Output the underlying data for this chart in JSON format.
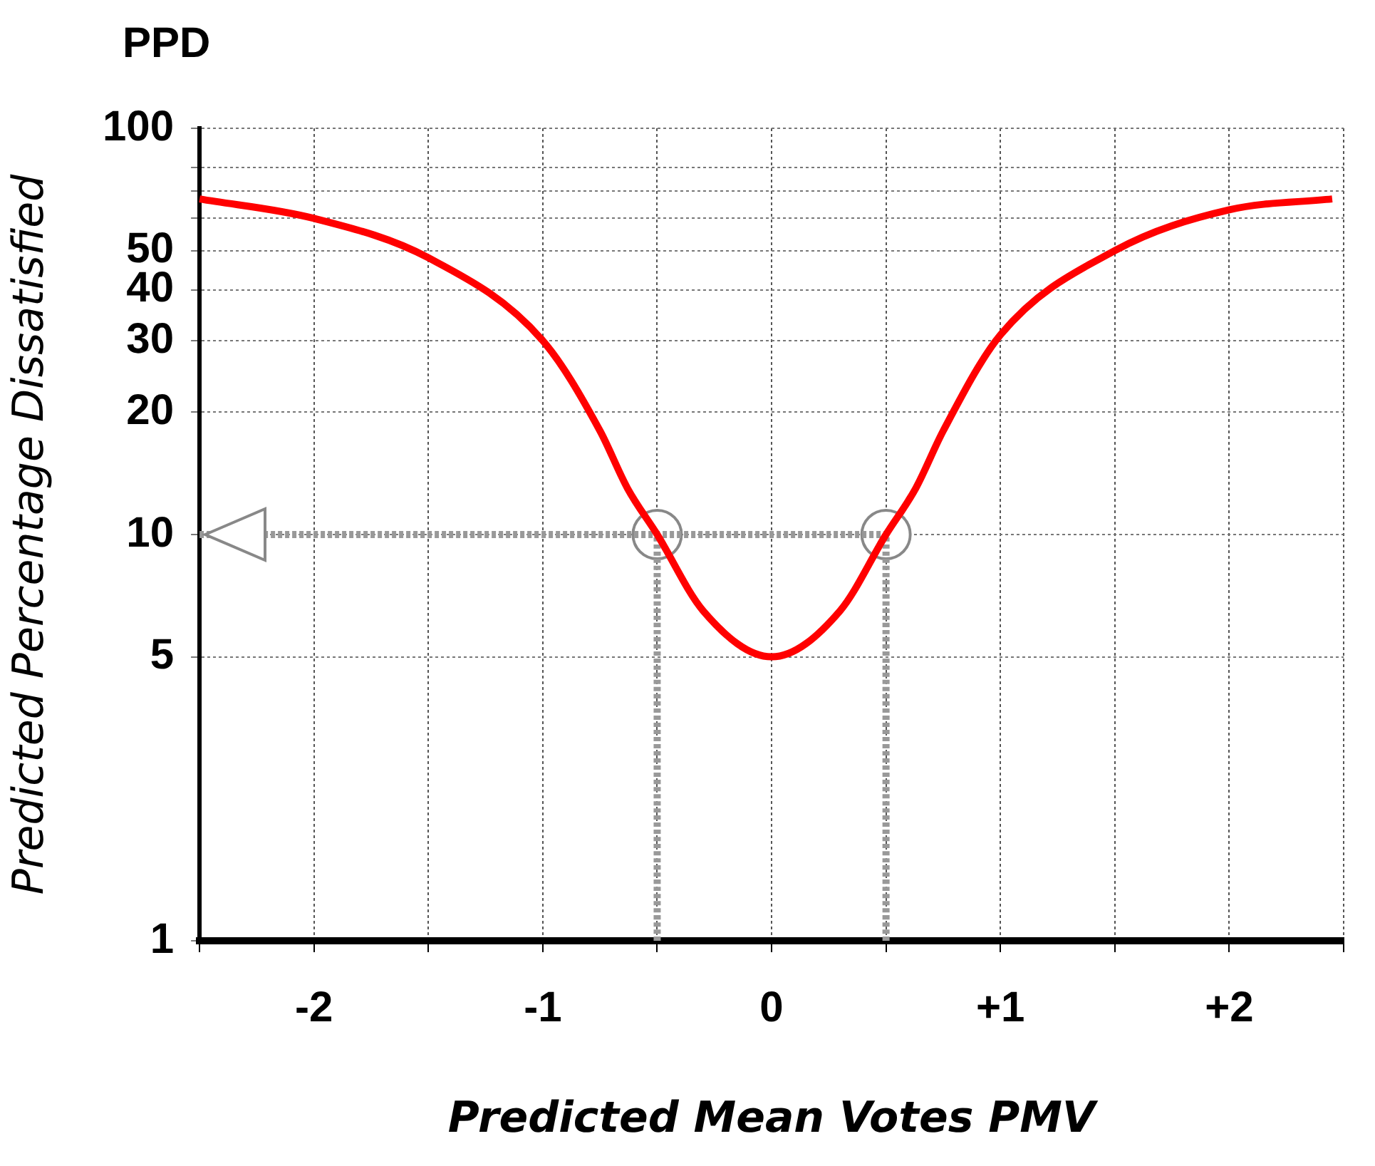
{
  "chart_data": {
    "type": "line",
    "title": "PPD",
    "xlabel": "Predicted Mean Votes PMV",
    "ylabel": "Predicted Percentage Dissatisfied",
    "log": "y",
    "grid": true,
    "legend": false,
    "xlim": [
      -2.5,
      2.5
    ],
    "xticks": [
      {
        "value": -2.5,
        "label": null
      },
      {
        "value": -2,
        "label": "-2"
      },
      {
        "value": -1.5,
        "label": null
      },
      {
        "value": -1,
        "label": "-1"
      },
      {
        "value": -0.5,
        "label": null
      },
      0,
      {
        "value": 0.5,
        "label": null
      },
      {
        "value": 1,
        "label": "+1"
      },
      {
        "value": 1.5,
        "label": null
      },
      {
        "value": 2,
        "label": "+2"
      },
      {
        "value": 2.5,
        "label": null
      }
    ],
    "ylim": [
      1,
      100
    ],
    "yticks": [
      1,
      5,
      10,
      20,
      30,
      40,
      50,
      {
        "value": 60,
        "label": null
      },
      {
        "value": 70,
        "label": null
      },
      {
        "value": 80,
        "label": null
      },
      100
    ],
    "series": [
      {
        "color": "#ff0000",
        "marker": "none",
        "line_style": "solid",
        "x": [
          -2.5,
          -2,
          -1.5,
          -1,
          -0.75,
          -0.63,
          -0.5,
          -0.3,
          0,
          0.3,
          0.5,
          0.63,
          0.75,
          1,
          1.5,
          2,
          2.45
        ],
        "values": [
          67,
          60,
          48,
          30,
          18,
          13,
          10,
          6.5,
          5,
          6.5,
          10,
          13,
          18,
          31,
          50,
          63,
          67
        ]
      },
      {
        "color": "#999999",
        "marker": "none",
        "line_style": "dotted",
        "x": [
          -2.5,
          0.5
        ],
        "values": [
          10,
          10
        ]
      },
      {
        "color": "#999999",
        "marker": "none",
        "line_style": "dotted",
        "x": [
          -0.5,
          -0.5
        ],
        "values": [
          1,
          10
        ]
      },
      {
        "color": "#999999",
        "marker": "none",
        "line_style": "dotted",
        "x": [
          0.5,
          0.5
        ],
        "values": [
          1,
          10
        ]
      },
      {
        "type": "scatter",
        "color": "#888888",
        "marker": "circle",
        "x": [
          -0.5,
          0.5
        ],
        "values": [
          10,
          10
        ]
      }
    ]
  }
}
